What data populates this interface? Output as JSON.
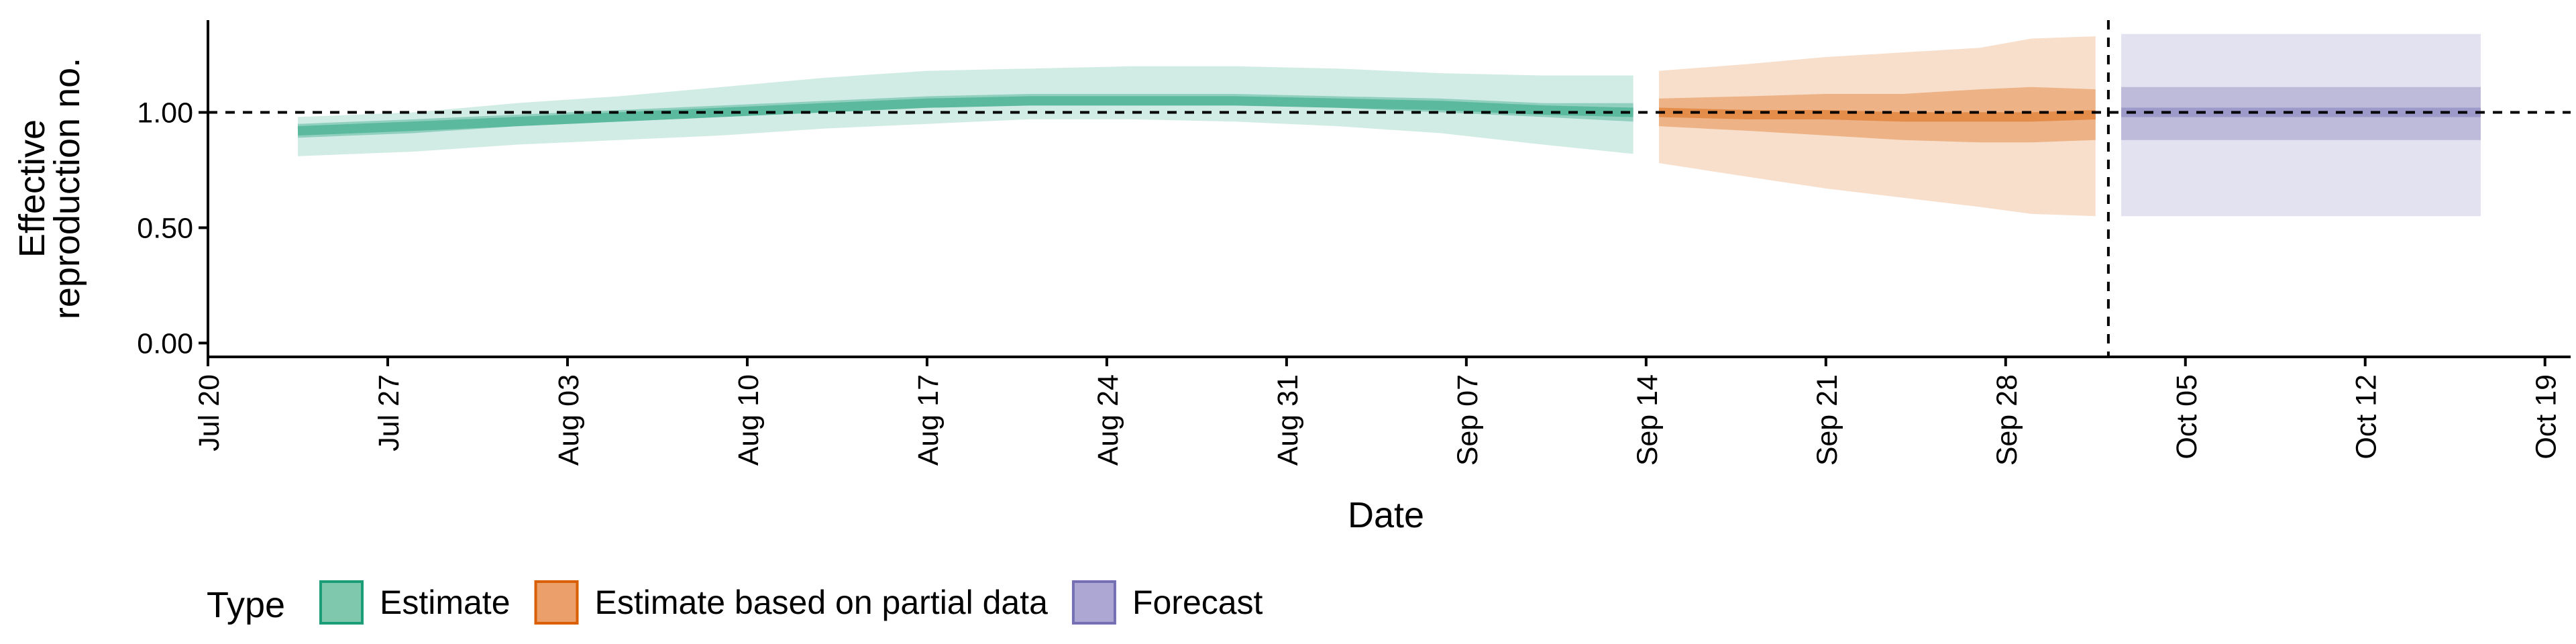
{
  "chart_data": {
    "type": "area",
    "xlabel": "Date",
    "ylabel_lines": [
      "Effective",
      "reproduction no."
    ],
    "ylim": [
      -0.06,
      1.4
    ],
    "y_ticks": [
      0.0,
      0.5,
      1.0
    ],
    "y_tick_labels": [
      "0.00",
      "0.50",
      "1.00"
    ],
    "x_range": [
      "2020-07-20",
      "2020-10-20"
    ],
    "x_ticks": [
      "2020-07-20",
      "2020-07-27",
      "2020-08-03",
      "2020-08-10",
      "2020-08-17",
      "2020-08-24",
      "2020-08-31",
      "2020-09-07",
      "2020-09-14",
      "2020-09-21",
      "2020-09-28",
      "2020-10-05",
      "2020-10-12",
      "2020-10-19"
    ],
    "x_tick_labels": [
      "Jul 20",
      "Jul 27",
      "Aug 03",
      "Aug 10",
      "Aug 17",
      "Aug 24",
      "Aug 31",
      "Sep 07",
      "Sep 14",
      "Sep 21",
      "Sep 28",
      "Oct 05",
      "Oct 12",
      "Oct 19"
    ],
    "reference_line_y": 1.0,
    "reference_line_x": "2020-10-02",
    "legend": {
      "title": "Type",
      "position": "bottom",
      "items": [
        {
          "label": "Estimate",
          "fill": "#7FC8AE",
          "stroke": "#1B9E77"
        },
        {
          "label": "Estimate based on partial data",
          "fill": "#EBA06B",
          "stroke": "#D95F02"
        },
        {
          "label": "Forecast",
          "fill": "#ADA8D3",
          "stroke": "#7570B3"
        }
      ]
    },
    "series": [
      {
        "name": "Estimate",
        "color": "#1B9E77",
        "x": [
          "2020-07-24",
          "2020-07-28",
          "2020-08-01",
          "2020-08-05",
          "2020-08-09",
          "2020-08-13",
          "2020-08-17",
          "2020-08-21",
          "2020-08-25",
          "2020-08-29",
          "2020-09-02",
          "2020-09-06",
          "2020-09-10",
          "2020-09-13"
        ],
        "median": [
          0.92,
          0.94,
          0.96,
          0.98,
          1.0,
          1.02,
          1.04,
          1.05,
          1.05,
          1.05,
          1.04,
          1.03,
          1.01,
          1.0
        ],
        "lower_50": [
          0.89,
          0.91,
          0.94,
          0.96,
          0.98,
          1.0,
          1.02,
          1.03,
          1.03,
          1.03,
          1.02,
          1.0,
          0.98,
          0.96
        ],
        "upper_50": [
          0.95,
          0.97,
          0.99,
          1.01,
          1.03,
          1.05,
          1.07,
          1.08,
          1.08,
          1.08,
          1.07,
          1.06,
          1.04,
          1.04
        ],
        "lower_90": [
          0.81,
          0.83,
          0.86,
          0.88,
          0.9,
          0.93,
          0.95,
          0.97,
          0.97,
          0.96,
          0.94,
          0.91,
          0.86,
          0.82
        ],
        "upper_90": [
          0.98,
          1.0,
          1.04,
          1.07,
          1.11,
          1.15,
          1.18,
          1.19,
          1.2,
          1.2,
          1.19,
          1.17,
          1.16,
          1.16
        ]
      },
      {
        "name": "Estimate based on partial data",
        "color": "#D95F02",
        "x": [
          "2020-09-15",
          "2020-09-18",
          "2020-09-21",
          "2020-09-24",
          "2020-09-27",
          "2020-09-29",
          "2020-10-01"
        ],
        "median": [
          1.0,
          0.99,
          0.99,
          0.98,
          0.98,
          0.98,
          0.99
        ],
        "lower_50": [
          0.94,
          0.92,
          0.9,
          0.88,
          0.87,
          0.87,
          0.88
        ],
        "upper_50": [
          1.06,
          1.07,
          1.08,
          1.08,
          1.1,
          1.11,
          1.1
        ],
        "lower_90": [
          0.78,
          0.72,
          0.67,
          0.63,
          0.59,
          0.56,
          0.55
        ],
        "upper_90": [
          1.18,
          1.21,
          1.24,
          1.26,
          1.28,
          1.32,
          1.33
        ]
      },
      {
        "name": "Forecast",
        "color": "#7570B3",
        "x": [
          "2020-10-03",
          "2020-10-16"
        ],
        "median": [
          1.0,
          1.0
        ],
        "lower_50": [
          0.88,
          0.88
        ],
        "upper_50": [
          1.11,
          1.11
        ],
        "lower_90": [
          0.55,
          0.55
        ],
        "upper_90": [
          1.34,
          1.34
        ]
      }
    ]
  }
}
